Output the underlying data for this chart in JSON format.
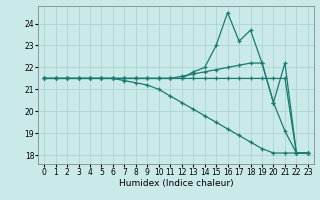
{
  "xlabel": "Humidex (Indice chaleur)",
  "bg_color": "#caeaea",
  "grid_color": "#aed4d4",
  "line_color": "#1a7a6e",
  "ylim": [
    17.6,
    24.8
  ],
  "xlim": [
    -0.5,
    23.5
  ],
  "yticks": [
    18,
    19,
    20,
    21,
    22,
    23,
    24
  ],
  "xticks": [
    0,
    1,
    2,
    3,
    4,
    5,
    6,
    7,
    8,
    9,
    10,
    11,
    12,
    13,
    14,
    15,
    16,
    17,
    18,
    19,
    20,
    21,
    22,
    23
  ],
  "lines": [
    {
      "x": [
        0,
        1,
        2,
        3,
        4,
        5,
        6,
        7,
        8,
        9,
        10,
        11,
        12,
        13,
        14,
        15,
        16,
        17,
        18,
        19,
        20,
        21,
        22,
        23
      ],
      "y": [
        21.5,
        21.5,
        21.5,
        21.5,
        21.5,
        21.5,
        21.5,
        21.5,
        21.5,
        21.5,
        21.5,
        21.5,
        21.5,
        21.8,
        22.0,
        23.0,
        24.5,
        23.2,
        23.7,
        22.2,
        20.4,
        19.1,
        18.1,
        18.1
      ]
    },
    {
      "x": [
        0,
        1,
        2,
        3,
        4,
        5,
        6,
        7,
        8,
        9,
        10,
        11,
        12,
        13,
        14,
        15,
        16,
        17,
        18,
        19,
        20,
        21,
        22,
        23
      ],
      "y": [
        21.5,
        21.5,
        21.5,
        21.5,
        21.5,
        21.5,
        21.5,
        21.5,
        21.5,
        21.5,
        21.5,
        21.5,
        21.6,
        21.7,
        21.8,
        21.9,
        22.0,
        22.1,
        22.2,
        22.2,
        20.4,
        22.2,
        18.1,
        18.1
      ]
    },
    {
      "x": [
        0,
        1,
        2,
        3,
        4,
        5,
        6,
        7,
        8,
        9,
        10,
        11,
        12,
        13,
        14,
        15,
        16,
        17,
        18,
        19,
        20,
        21,
        22,
        23
      ],
      "y": [
        21.5,
        21.5,
        21.5,
        21.5,
        21.5,
        21.5,
        21.5,
        21.4,
        21.3,
        21.2,
        21.0,
        20.7,
        20.4,
        20.1,
        19.8,
        19.5,
        19.2,
        18.9,
        18.6,
        18.3,
        18.1,
        18.1,
        18.1,
        18.1
      ]
    },
    {
      "x": [
        0,
        1,
        2,
        3,
        4,
        5,
        6,
        7,
        8,
        9,
        10,
        11,
        12,
        13,
        14,
        15,
        16,
        17,
        18,
        19,
        20,
        21,
        22,
        23
      ],
      "y": [
        21.5,
        21.5,
        21.5,
        21.5,
        21.5,
        21.5,
        21.5,
        21.5,
        21.5,
        21.5,
        21.5,
        21.5,
        21.5,
        21.5,
        21.5,
        21.5,
        21.5,
        21.5,
        21.5,
        21.5,
        21.5,
        21.5,
        18.1,
        18.1
      ]
    }
  ]
}
